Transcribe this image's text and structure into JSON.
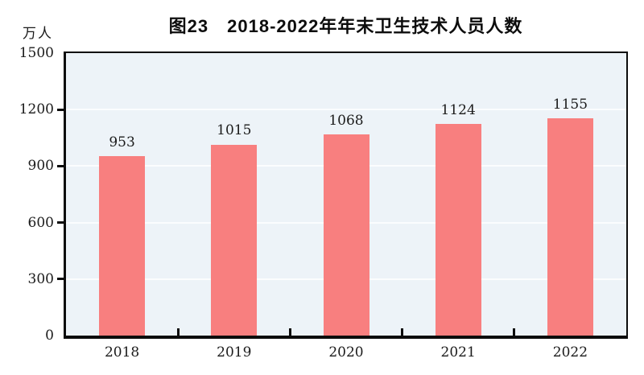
{
  "chart_data": {
    "type": "bar",
    "title": "图23　2018-2022年年末卫生技术人员人数",
    "unit": "万人",
    "categories": [
      "2018",
      "2019",
      "2020",
      "2021",
      "2022"
    ],
    "values": [
      953,
      1015,
      1068,
      1124,
      1155
    ],
    "ylim": [
      0,
      1500
    ],
    "yticks": [
      0,
      300,
      600,
      900,
      1200,
      1500
    ],
    "grid": "horizontal",
    "legend": "none",
    "colors": {
      "bar": "#f87f7f",
      "plot_background": "#edf3f8",
      "gridline": "#fbfdfe",
      "axis": "#0c0c0c",
      "text": "#1b1b1b"
    }
  }
}
